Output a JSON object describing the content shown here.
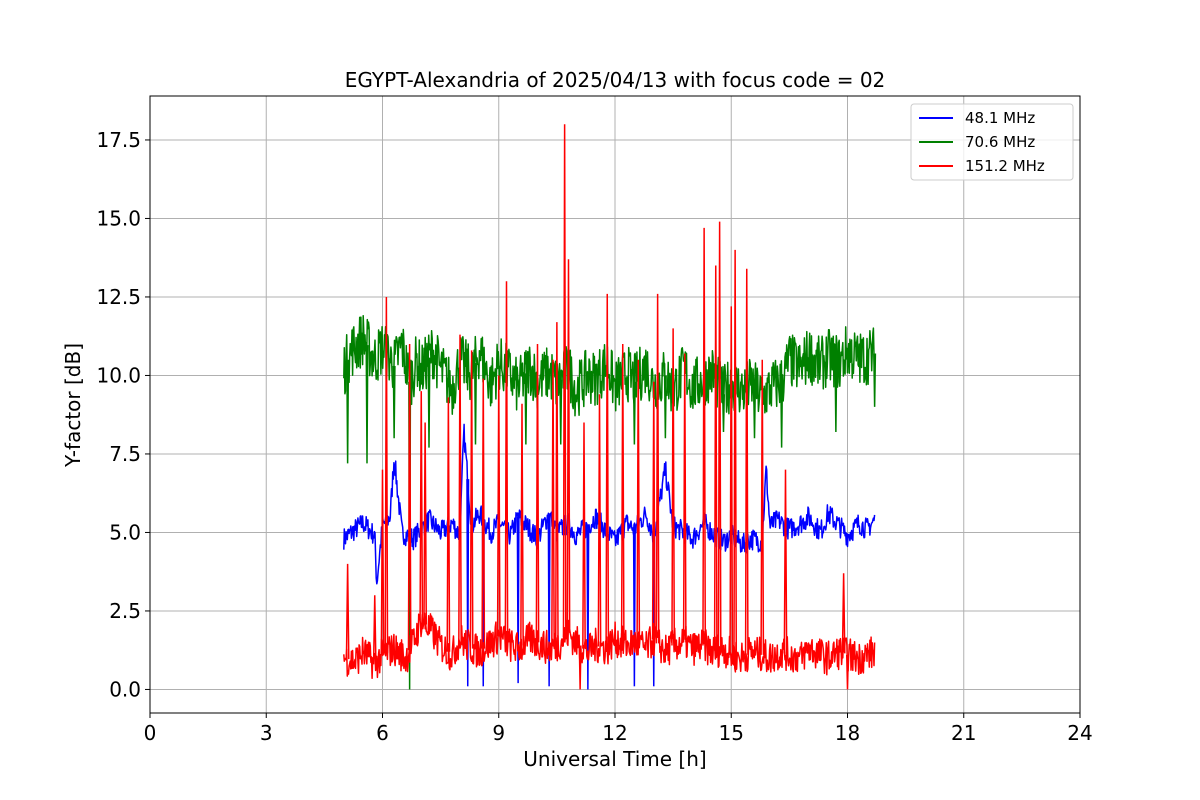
{
  "chart_data": {
    "type": "line",
    "title": "EGYPT-Alexandria of 2025/04/13 with focus code = 02",
    "xlabel": "Universal Time [h]",
    "ylabel": "Y-factor [dB]",
    "xlim": [
      0,
      24
    ],
    "ylim": [
      -0.75,
      18.9
    ],
    "xticks": [
      0,
      3,
      6,
      9,
      12,
      15,
      18,
      21,
      24
    ],
    "xtick_labels": [
      "0",
      "3",
      "6",
      "9",
      "12",
      "15",
      "18",
      "21",
      "24"
    ],
    "yticks": [
      0.0,
      2.5,
      5.0,
      7.5,
      10.0,
      12.5,
      15.0,
      17.5
    ],
    "ytick_labels": [
      "0.0",
      "2.5",
      "5.0",
      "7.5",
      "10.0",
      "12.5",
      "15.0",
      "17.5"
    ],
    "grid": true,
    "legend_position": "top-right",
    "series": [
      {
        "name": "  48.1 MHz",
        "color": "#0000ff",
        "x": [
          5.0,
          5.2,
          5.5,
          5.8,
          5.85,
          6.0,
          6.2,
          6.3,
          6.5,
          6.8,
          7.0,
          7.2,
          7.5,
          7.8,
          8.0,
          8.1,
          8.3,
          8.5,
          8.8,
          9.0,
          9.3,
          9.5,
          9.8,
          10.0,
          10.3,
          10.5,
          10.8,
          11.0,
          11.3,
          11.5,
          11.8,
          12.0,
          12.3,
          12.5,
          12.8,
          13.0,
          13.3,
          13.5,
          13.8,
          14.0,
          14.3,
          14.5,
          14.8,
          15.0,
          15.3,
          15.5,
          15.8,
          15.9,
          16.0,
          16.2,
          16.5,
          16.8,
          17.0,
          17.3,
          17.5,
          17.8,
          18.0,
          18.3,
          18.5,
          18.7
        ],
        "y": [
          4.8,
          5.0,
          5.3,
          4.9,
          3.4,
          5.2,
          5.5,
          7.4,
          5.0,
          4.8,
          5.1,
          5.4,
          5.0,
          5.3,
          4.9,
          8.2,
          5.2,
          5.6,
          5.0,
          5.3,
          4.9,
          5.5,
          5.1,
          4.8,
          5.6,
          5.0,
          5.3,
          4.9,
          5.2,
          5.5,
          5.0,
          4.7,
          5.3,
          5.1,
          5.6,
          4.9,
          7.0,
          5.2,
          5.0,
          4.8,
          5.3,
          5.0,
          4.7,
          4.9,
          4.6,
          4.8,
          4.7,
          7.0,
          5.2,
          5.4,
          5.1,
          5.3,
          5.5,
          5.0,
          5.6,
          5.2,
          4.9,
          5.3,
          5.1,
          5.4
        ],
        "dips": [
          [
            8.2,
            0.1
          ],
          [
            8.6,
            0.1
          ],
          [
            9.5,
            0.2
          ],
          [
            10.3,
            0.1
          ],
          [
            11.3,
            0.0
          ],
          [
            12.5,
            0.1
          ],
          [
            13.0,
            0.1
          ]
        ]
      },
      {
        "name": "  70.6 MHz",
        "color": "#008000",
        "x": [
          5.0,
          5.2,
          5.5,
          5.8,
          6.0,
          6.3,
          6.5,
          6.7,
          6.9,
          7.0,
          7.3,
          7.5,
          7.8,
          8.0,
          8.3,
          8.5,
          8.8,
          9.0,
          9.3,
          9.5,
          9.8,
          10.0,
          10.3,
          10.5,
          10.8,
          11.0,
          11.3,
          11.5,
          11.8,
          12.0,
          12.3,
          12.5,
          12.8,
          13.0,
          13.3,
          13.5,
          13.8,
          14.0,
          14.3,
          14.5,
          14.8,
          15.0,
          15.3,
          15.5,
          15.8,
          16.0,
          16.3,
          16.5,
          16.8,
          17.0,
          17.3,
          17.5,
          17.8,
          18.0,
          18.3,
          18.5,
          18.7
        ],
        "y": [
          10.2,
          10.8,
          11.2,
          10.5,
          10.9,
          10.3,
          11.0,
          9.8,
          10.5,
          10.1,
          10.8,
          10.2,
          9.6,
          10.5,
          10.0,
          10.8,
          9.7,
          10.4,
          10.0,
          9.6,
          10.3,
          9.8,
          10.1,
          9.7,
          10.2,
          9.5,
          10.0,
          9.9,
          10.4,
          9.6,
          10.1,
          9.8,
          10.3,
          9.7,
          10.0,
          9.5,
          10.2,
          9.6,
          9.9,
          10.1,
          9.4,
          9.8,
          9.5,
          9.7,
          9.3,
          9.6,
          9.8,
          10.5,
          10.2,
          10.7,
          10.3,
          10.6,
          10.4,
          10.8,
          10.5,
          10.6,
          10.7
        ],
        "dips": [
          [
            5.1,
            7.2
          ],
          [
            5.6,
            7.2
          ],
          [
            6.3,
            8.0
          ],
          [
            6.7,
            0.0
          ],
          [
            7.2,
            7.7
          ],
          [
            8.4,
            7.8
          ],
          [
            9.7,
            7.8
          ],
          [
            10.6,
            7.8
          ],
          [
            12.5,
            7.8
          ],
          [
            13.3,
            8.0
          ],
          [
            14.8,
            8.2
          ],
          [
            15.6,
            8.0
          ],
          [
            16.3,
            7.7
          ],
          [
            17.7,
            8.2
          ],
          [
            18.7,
            9.0
          ]
        ]
      },
      {
        "name": " 151.2 MHz",
        "color": "#ff0000",
        "x": [
          5.0,
          5.3,
          5.5,
          5.8,
          6.0,
          6.3,
          6.6,
          6.8,
          7.0,
          7.3,
          7.5,
          7.8,
          8.0,
          8.3,
          8.5,
          8.8,
          9.0,
          9.3,
          9.5,
          9.8,
          10.0,
          10.3,
          10.5,
          10.8,
          11.0,
          11.3,
          11.5,
          11.8,
          12.0,
          12.3,
          12.5,
          12.8,
          13.0,
          13.3,
          13.5,
          13.8,
          14.0,
          14.3,
          14.5,
          14.8,
          15.0,
          15.3,
          15.5,
          15.8,
          16.0,
          16.3,
          16.5,
          16.8,
          17.0,
          17.3,
          17.5,
          17.8,
          18.0,
          18.3,
          18.5,
          18.7
        ],
        "y": [
          1.0,
          0.9,
          1.2,
          0.8,
          1.1,
          1.3,
          1.0,
          1.5,
          2.2,
          1.8,
          1.4,
          1.1,
          1.6,
          1.3,
          1.2,
          1.5,
          1.7,
          1.4,
          1.3,
          1.6,
          1.5,
          1.3,
          1.4,
          1.8,
          1.5,
          1.2,
          1.4,
          1.3,
          1.6,
          1.4,
          1.5,
          1.3,
          1.6,
          1.2,
          1.4,
          1.5,
          1.3,
          1.4,
          1.2,
          1.3,
          1.1,
          1.0,
          1.2,
          1.1,
          1.0,
          1.2,
          1.1,
          1.0,
          1.3,
          1.1,
          1.0,
          1.2,
          1.1,
          1.0,
          1.1,
          1.2
        ],
        "spikes": [
          [
            5.1,
            4.0
          ],
          [
            5.8,
            3.0
          ],
          [
            6.0,
            7.0
          ],
          [
            6.1,
            12.5
          ],
          [
            6.7,
            11.0
          ],
          [
            7.0,
            9.5
          ],
          [
            7.1,
            8.5
          ],
          [
            7.7,
            9.3
          ],
          [
            8.0,
            11.3
          ],
          [
            8.3,
            10.8
          ],
          [
            8.6,
            9.9
          ],
          [
            9.0,
            10.0
          ],
          [
            9.2,
            13.0
          ],
          [
            9.6,
            9.1
          ],
          [
            10.0,
            11.0
          ],
          [
            10.4,
            10.5
          ],
          [
            10.5,
            11.7
          ],
          [
            10.7,
            18.0
          ],
          [
            10.8,
            13.7
          ],
          [
            11.2,
            8.5
          ],
          [
            11.6,
            9.4
          ],
          [
            11.8,
            12.6
          ],
          [
            12.2,
            11.0
          ],
          [
            12.6,
            10.5
          ],
          [
            13.0,
            9.8
          ],
          [
            13.1,
            12.6
          ],
          [
            13.5,
            11.5
          ],
          [
            13.8,
            10.7
          ],
          [
            14.3,
            14.7
          ],
          [
            14.6,
            13.5
          ],
          [
            14.7,
            14.9
          ],
          [
            15.0,
            12.2
          ],
          [
            15.1,
            14.0
          ],
          [
            15.4,
            13.4
          ],
          [
            15.8,
            10.5
          ],
          [
            16.4,
            7.0
          ],
          [
            17.9,
            3.7
          ]
        ],
        "dips": [
          [
            11.1,
            0.0
          ],
          [
            18.0,
            0.0
          ]
        ]
      }
    ]
  }
}
